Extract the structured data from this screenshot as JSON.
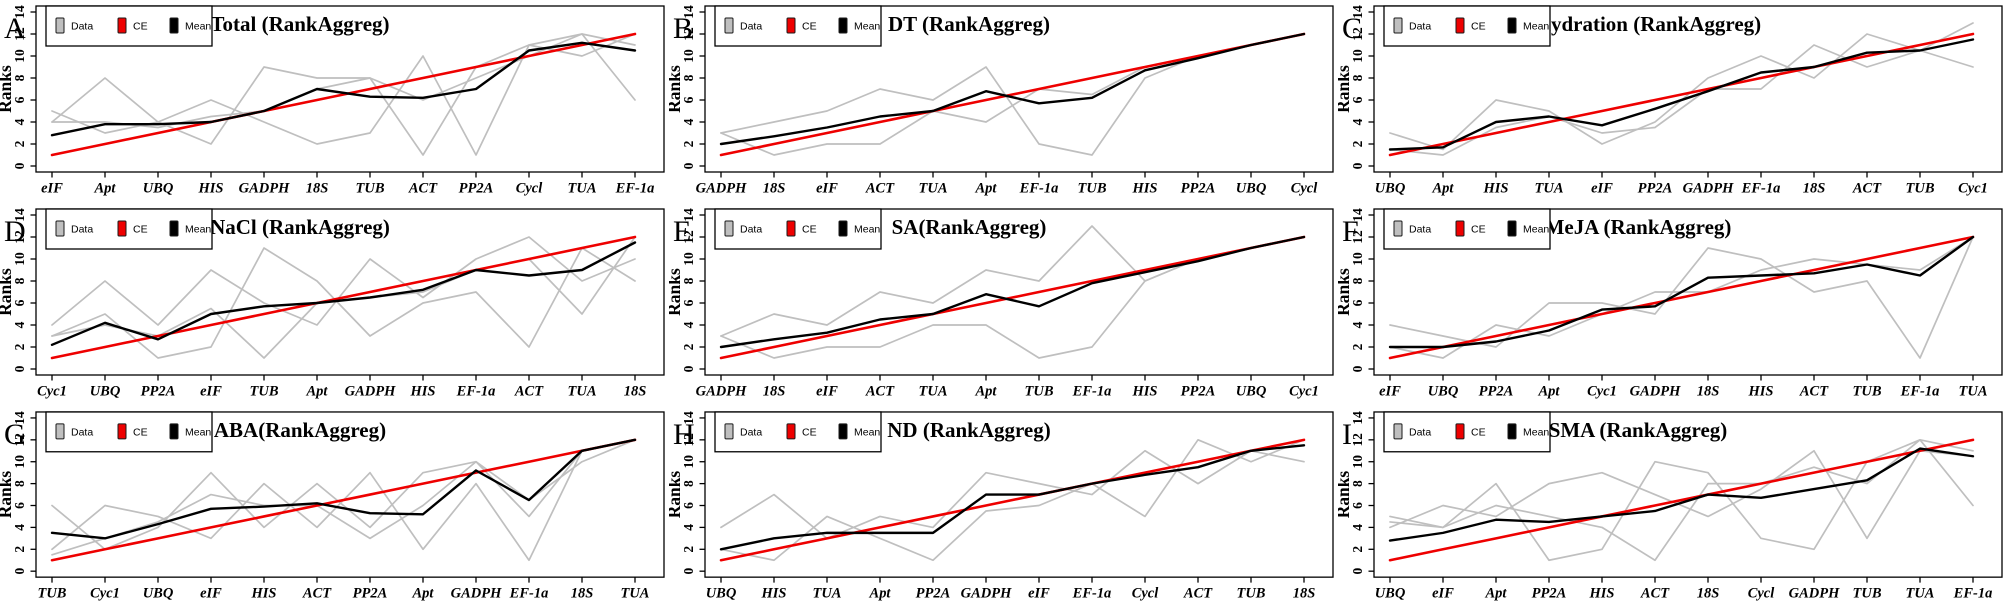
{
  "figure": {
    "background": "#ffffff"
  },
  "colors": {
    "data": "#bfbfbf",
    "ce": "#ee0000",
    "mean": "#000000",
    "axis": "#000000",
    "legend_border": "#000000"
  },
  "y_axis": {
    "label": "Ranks",
    "ticks": [
      0,
      2,
      4,
      6,
      8,
      10,
      12,
      14
    ],
    "min": 0,
    "max": 14
  },
  "legend": {
    "items": [
      {
        "label": "Data",
        "color": "data"
      },
      {
        "label": "CE",
        "color": "ce"
      },
      {
        "label": "Mean",
        "color": "mean"
      }
    ]
  },
  "chart_data": [
    {
      "type": "line",
      "panel_letter": "A",
      "title": "Total (RankAggreg)",
      "xlabel": "",
      "ylabel": "Ranks",
      "ylim": [
        0,
        14
      ],
      "grid": false,
      "legend_position": "top-left",
      "categories": [
        "eIF",
        "Apt",
        "UBQ",
        "HIS",
        "GADPH",
        "18S",
        "TUB",
        "ACT",
        "PP2A",
        "Cycl",
        "TUA",
        "EF-1a"
      ],
      "series": [
        {
          "name": "Data",
          "color": "data",
          "values": [
            5,
            3,
            4,
            2,
            9,
            8,
            8,
            1,
            9,
            11,
            12,
            11
          ]
        },
        {
          "name": "Data",
          "color": "data",
          "values": [
            4,
            8,
            4,
            6,
            4,
            2,
            3,
            10,
            1,
            11,
            10,
            12
          ]
        },
        {
          "name": "Data",
          "color": "data",
          "values": [
            4,
            4,
            3.5,
            4.5,
            5,
            7,
            8,
            6,
            8,
            10,
            12,
            6
          ]
        },
        {
          "name": "CE",
          "color": "ce",
          "values": [
            1,
            2,
            3,
            4,
            5,
            6,
            7,
            8,
            9,
            10,
            11,
            12
          ]
        },
        {
          "name": "Mean",
          "color": "mean",
          "values": [
            2.8,
            3.8,
            3.8,
            4,
            5,
            7,
            6.3,
            6.2,
            7,
            10.5,
            11.2,
            10.5
          ]
        }
      ]
    },
    {
      "type": "line",
      "panel_letter": "B",
      "title": "DT (RankAggreg)",
      "xlabel": "",
      "ylabel": "Ranks",
      "ylim": [
        0,
        14
      ],
      "grid": false,
      "legend_position": "top-left",
      "categories": [
        "GADPH",
        "18S",
        "eIF",
        "ACT",
        "TUA",
        "Apt",
        "EF-1a",
        "TUB",
        "HIS",
        "PP2A",
        "UBQ",
        "Cycl"
      ],
      "series": [
        {
          "name": "Data",
          "color": "data",
          "values": [
            3,
            4,
            5,
            7,
            6,
            9,
            2,
            1,
            8,
            10,
            11,
            12
          ]
        },
        {
          "name": "Data",
          "color": "data",
          "values": [
            3,
            1,
            2,
            2,
            5,
            4,
            7,
            6.5,
            9,
            10,
            11,
            12
          ]
        },
        {
          "name": "CE",
          "color": "ce",
          "values": [
            1,
            2,
            3,
            4,
            5,
            6,
            7,
            8,
            9,
            10,
            11,
            12
          ]
        },
        {
          "name": "Mean",
          "color": "mean",
          "values": [
            2,
            2.7,
            3.5,
            4.5,
            5,
            6.8,
            5.7,
            6.2,
            8.7,
            9.8,
            11,
            12
          ]
        }
      ]
    },
    {
      "type": "line",
      "panel_letter": "C",
      "title": "Dehydration (RankAggreg)",
      "xlabel": "",
      "ylabel": "Ranks",
      "ylim": [
        0,
        14
      ],
      "grid": false,
      "legend_position": "top-left",
      "categories": [
        "UBQ",
        "Apt",
        "HIS",
        "TUA",
        "eIF",
        "PP2A",
        "GADPH",
        "EF-1a",
        "18S",
        "ACT",
        "TUB",
        "Cyc1"
      ],
      "series": [
        {
          "name": "Data",
          "color": "data",
          "values": [
            3,
            1.5,
            6,
            5,
            2,
            4,
            8,
            10,
            8,
            12,
            10.5,
            9
          ]
        },
        {
          "name": "Data",
          "color": "data",
          "values": [
            1.5,
            1,
            3.5,
            4.5,
            3,
            3.5,
            7,
            7,
            11,
            9,
            10.5,
            13
          ]
        },
        {
          "name": "CE",
          "color": "ce",
          "values": [
            1,
            2,
            3,
            4,
            5,
            6,
            7,
            8,
            9,
            10,
            11,
            12
          ]
        },
        {
          "name": "Mean",
          "color": "mean",
          "values": [
            1.5,
            1.7,
            4,
            4.5,
            3.7,
            5.2,
            6.8,
            8.5,
            9,
            10.3,
            10.5,
            11.5
          ]
        }
      ]
    },
    {
      "type": "line",
      "panel_letter": "D",
      "title": "NaCl (RankAggreg)",
      "xlabel": "",
      "ylabel": "Ranks",
      "ylim": [
        0,
        14
      ],
      "grid": false,
      "legend_position": "top-left",
      "categories": [
        "Cyc1",
        "UBQ",
        "PP2A",
        "eIF",
        "TUB",
        "Apt",
        "GADPH",
        "HIS",
        "EF-1a",
        "ACT",
        "TUA",
        "18S"
      ],
      "series": [
        {
          "name": "Data",
          "color": "data",
          "values": [
            4,
            8,
            4,
            9,
            6,
            4,
            10,
            6.5,
            10,
            12,
            8,
            10
          ]
        },
        {
          "name": "Data",
          "color": "data",
          "values": [
            3,
            5,
            1,
            2,
            11,
            8,
            3,
            6,
            7,
            2,
            11,
            8
          ]
        },
        {
          "name": "Data",
          "color": "data",
          "values": [
            3,
            4,
            3,
            5.5,
            1,
            6,
            6.5,
            7,
            9,
            10,
            5,
            12
          ]
        },
        {
          "name": "CE",
          "color": "ce",
          "values": [
            1,
            2,
            3,
            4,
            5,
            6,
            7,
            8,
            9,
            10,
            11,
            12
          ]
        },
        {
          "name": "Mean",
          "color": "mean",
          "values": [
            2.2,
            4.2,
            2.7,
            5,
            5.7,
            6,
            6.5,
            7.2,
            9,
            8.5,
            9,
            11.5
          ]
        }
      ]
    },
    {
      "type": "line",
      "panel_letter": "E",
      "title": "SA(RankAggreg)",
      "xlabel": "",
      "ylabel": "Ranks",
      "ylim": [
        0,
        14
      ],
      "grid": false,
      "legend_position": "top-left",
      "categories": [
        "GADPH",
        "18S",
        "eIF",
        "ACT",
        "TUA",
        "Apt",
        "TUB",
        "EF-1a",
        "HIS",
        "PP2A",
        "UBQ",
        "Cyc1"
      ],
      "series": [
        {
          "name": "Data",
          "color": "data",
          "values": [
            3,
            5,
            4,
            7,
            6,
            9,
            8,
            13,
            8,
            10,
            11,
            12
          ]
        },
        {
          "name": "Data",
          "color": "data",
          "values": [
            3,
            1,
            2,
            2,
            4,
            4,
            1,
            2,
            8,
            10,
            11,
            12
          ]
        },
        {
          "name": "CE",
          "color": "ce",
          "values": [
            1,
            2,
            3,
            4,
            5,
            6,
            7,
            8,
            9,
            10,
            11,
            12
          ]
        },
        {
          "name": "Mean",
          "color": "mean",
          "values": [
            2,
            2.7,
            3.3,
            4.5,
            5,
            6.8,
            5.7,
            7.8,
            8.8,
            9.8,
            11,
            12
          ]
        }
      ]
    },
    {
      "type": "line",
      "panel_letter": "F",
      "title": "MeJA (RankAggreg)",
      "xlabel": "",
      "ylabel": "Ranks",
      "ylim": [
        0,
        14
      ],
      "grid": false,
      "legend_position": "top-left",
      "categories": [
        "eIF",
        "UBQ",
        "PP2A",
        "Apt",
        "Cyc1",
        "GADPH",
        "18S",
        "HIS",
        "ACT",
        "TUB",
        "EF-1a",
        "TUA"
      ],
      "series": [
        {
          "name": "Data",
          "color": "data",
          "values": [
            4,
            3,
            2,
            6,
            6,
            5,
            11,
            10,
            7,
            8,
            1,
            12
          ]
        },
        {
          "name": "Data",
          "color": "data",
          "values": [
            2,
            1,
            4,
            3,
            5,
            7,
            7,
            9,
            10,
            9.5,
            9,
            12
          ]
        },
        {
          "name": "CE",
          "color": "ce",
          "values": [
            1,
            2,
            3,
            4,
            5,
            6,
            7,
            8,
            9,
            10,
            11,
            12
          ]
        },
        {
          "name": "Mean",
          "color": "mean",
          "values": [
            2,
            2,
            2.5,
            3.5,
            5.4,
            5.7,
            8.3,
            8.5,
            8.7,
            9.5,
            8.5,
            12
          ]
        }
      ]
    },
    {
      "type": "line",
      "panel_letter": "G",
      "title": "ABA(RankAggreg)",
      "xlabel": "",
      "ylabel": "Ranks",
      "ylim": [
        0,
        14
      ],
      "grid": false,
      "legend_position": "top-left",
      "categories": [
        "TUB",
        "Cyc1",
        "UBQ",
        "eIF",
        "HIS",
        "ACT",
        "PP2A",
        "Apt",
        "GADPH",
        "EF-1a",
        "18S",
        "TUA"
      ],
      "series": [
        {
          "name": "Data",
          "color": "data",
          "values": [
            6,
            2,
            4,
            9,
            4,
            8,
            4,
            9,
            10,
            5,
            11,
            12
          ]
        },
        {
          "name": "Data",
          "color": "data",
          "values": [
            2,
            6,
            5,
            3,
            8,
            4,
            9,
            2,
            8,
            1,
            11,
            12
          ]
        },
        {
          "name": "Data",
          "color": "data",
          "values": [
            1.5,
            3,
            4.5,
            7,
            6,
            6,
            3,
            6,
            10,
            6.5,
            10,
            12
          ]
        },
        {
          "name": "CE",
          "color": "ce",
          "values": [
            1,
            2,
            3,
            4,
            5,
            6,
            7,
            8,
            9,
            10,
            11,
            12
          ]
        },
        {
          "name": "Mean",
          "color": "mean",
          "values": [
            3.5,
            3,
            4.3,
            5.7,
            5.9,
            6.2,
            5.3,
            5.2,
            9.2,
            6.5,
            11,
            12
          ]
        }
      ]
    },
    {
      "type": "line",
      "panel_letter": "H",
      "title": "ND (RankAggreg)",
      "xlabel": "",
      "ylabel": "Ranks",
      "ylim": [
        0,
        14
      ],
      "grid": false,
      "legend_position": "top-left",
      "categories": [
        "UBQ",
        "HIS",
        "TUA",
        "Apt",
        "PP2A",
        "GADPH",
        "eIF",
        "EF-1a",
        "Cycl",
        "ACT",
        "TUB",
        "18S"
      ],
      "series": [
        {
          "name": "Data",
          "color": "data",
          "values": [
            4,
            7,
            3,
            5,
            4,
            9,
            8,
            7,
            11,
            8,
            11,
            10
          ]
        },
        {
          "name": "Data",
          "color": "data",
          "values": [
            2,
            1,
            5,
            3,
            1,
            5.5,
            6,
            8,
            5,
            12,
            10,
            12
          ]
        },
        {
          "name": "CE",
          "color": "ce",
          "values": [
            1,
            2,
            3,
            4,
            5,
            6,
            7,
            8,
            9,
            10,
            11,
            12
          ]
        },
        {
          "name": "Mean",
          "color": "mean",
          "values": [
            2,
            3,
            3.5,
            3.5,
            3.5,
            7,
            7,
            8,
            8.8,
            9.5,
            11,
            11.5
          ]
        }
      ]
    },
    {
      "type": "line",
      "panel_letter": "I",
      "title": "SMA (RankAggreg)",
      "xlabel": "",
      "ylabel": "Ranks",
      "ylim": [
        0,
        14
      ],
      "grid": false,
      "legend_position": "top-left",
      "categories": [
        "UBQ",
        "eIF",
        "Apt",
        "PP2A",
        "HIS",
        "ACT",
        "18S",
        "Cycl",
        "GADPH",
        "TUB",
        "TUA",
        "EF-1a"
      ],
      "series": [
        {
          "name": "Data",
          "color": "data",
          "values": [
            5,
            4,
            8,
            1,
            2,
            10,
            9,
            3,
            2,
            10,
            12,
            6
          ]
        },
        {
          "name": "Data",
          "color": "data",
          "values": [
            4,
            6,
            5,
            8,
            9,
            7,
            5,
            7.5,
            11,
            3,
            11,
            10.5
          ]
        },
        {
          "name": "Data",
          "color": "data",
          "values": [
            4.5,
            4,
            6,
            5,
            4,
            1,
            8,
            8,
            9.5,
            8,
            12,
            11
          ]
        },
        {
          "name": "CE",
          "color": "ce",
          "values": [
            1,
            2,
            3,
            4,
            5,
            6,
            7,
            8,
            9,
            10,
            11,
            12
          ]
        },
        {
          "name": "Mean",
          "color": "mean",
          "values": [
            2.8,
            3.5,
            4.7,
            4.5,
            5,
            5.5,
            7,
            6.7,
            7.5,
            8.3,
            11.2,
            10.5
          ]
        }
      ]
    }
  ]
}
